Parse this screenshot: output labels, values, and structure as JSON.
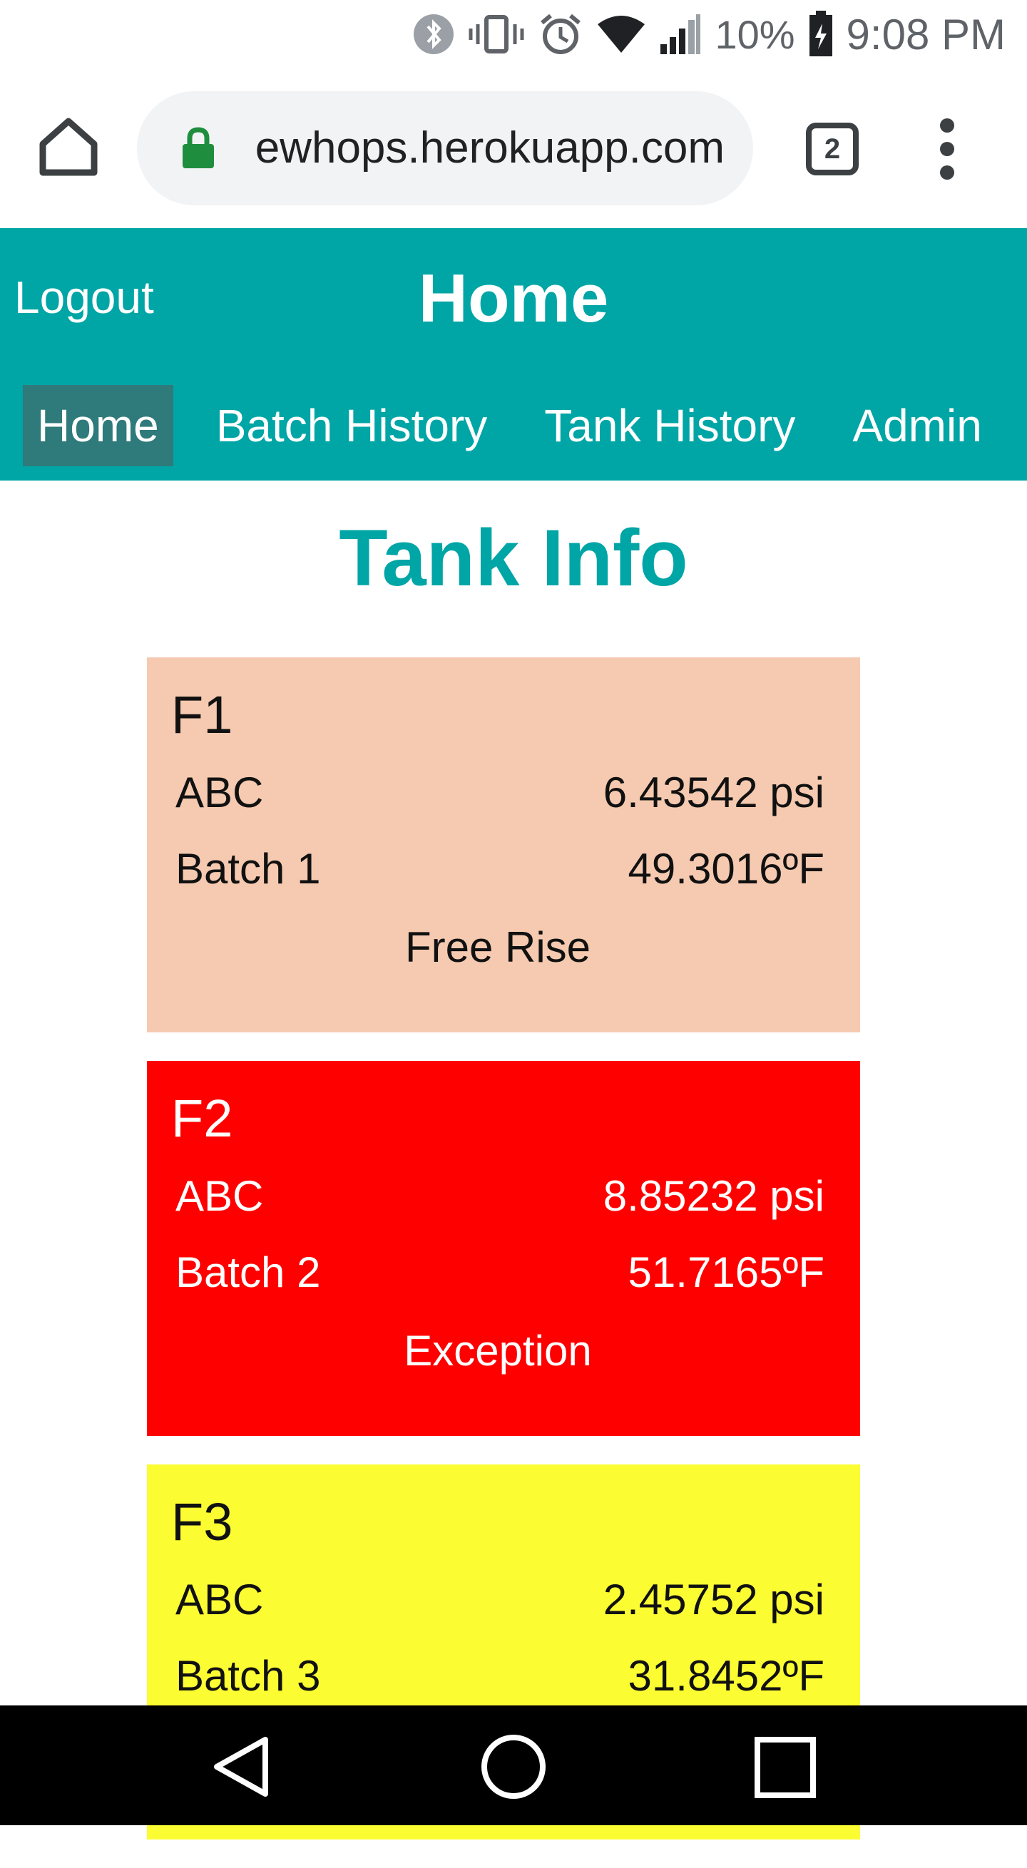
{
  "status_bar": {
    "battery": "10%",
    "time": "9:08 PM",
    "icons": [
      "bluetooth-icon",
      "vibrate-icon",
      "alarm-icon",
      "wifi-icon",
      "signal-icon",
      "battery-icon"
    ]
  },
  "browser": {
    "url": "ewhops.herokuapp.com",
    "tab_count": "2",
    "icons": [
      "home-icon",
      "lock-icon",
      "tab-switcher-icon",
      "overflow-menu-icon"
    ]
  },
  "header": {
    "logout_label": "Logout",
    "title": "Home",
    "nav": [
      {
        "label": "Home",
        "active": true
      },
      {
        "label": "Batch History",
        "active": false
      },
      {
        "label": "Tank History",
        "active": false
      },
      {
        "label": "Admin",
        "active": false
      }
    ],
    "background": "#00a5a6",
    "active_nav_background": "#2f7a7a"
  },
  "main": {
    "title": "Tank Info",
    "tanks": [
      {
        "name": "F1",
        "beer": "ABC",
        "pressure": "6.43542 psi",
        "batch": "Batch 1",
        "temperature": "49.3016ºF",
        "status": "Free Rise",
        "color": "#f5cab0",
        "text_color": "#111111"
      },
      {
        "name": "F2",
        "beer": "ABC",
        "pressure": "8.85232 psi",
        "batch": "Batch 2",
        "temperature": "51.7165ºF",
        "status": "Exception",
        "color": "#ff0000",
        "text_color": "#ffffff"
      },
      {
        "name": "F3",
        "beer": "ABC",
        "pressure": "2.45752 psi",
        "batch": "Batch 3",
        "temperature": "31.8452ºF",
        "status": "",
        "color": "#fcfc33",
        "text_color": "#111111"
      }
    ]
  },
  "android_nav": {
    "icons": [
      "back-icon",
      "home-circle-icon",
      "recents-icon"
    ]
  }
}
